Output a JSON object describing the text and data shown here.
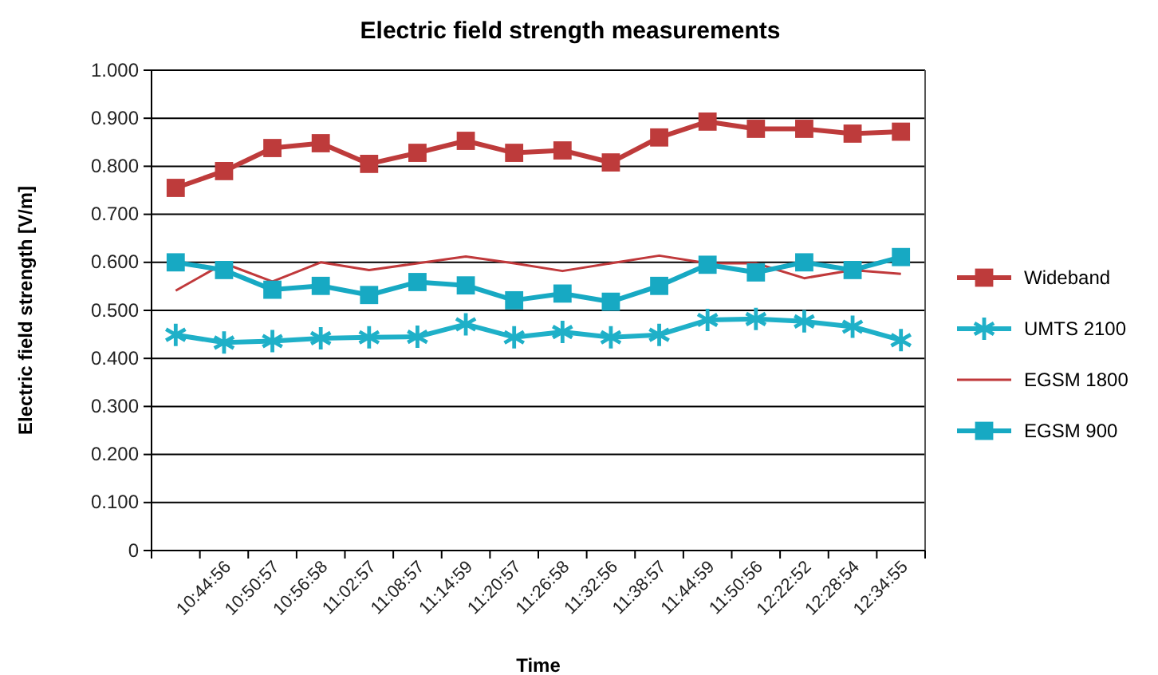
{
  "chart_data": {
    "type": "line",
    "title": "Electric field strength measurements",
    "xlabel": "Time",
    "ylabel": "Electric field strength [V/m]",
    "categories": [
      null,
      "10:44:56",
      "10:50:57",
      "10:56:58",
      "11:02:57",
      "11:08:57",
      "11:14:59",
      "11:20:57",
      "11:26:58",
      "11:32:56",
      "11:38:57",
      "11:44:59",
      "11:50:56",
      "12:22:52",
      "12:28:54",
      "12:34:55"
    ],
    "ylim": [
      0,
      1
    ],
    "yticks": [
      {
        "value": 0,
        "label": "0"
      },
      {
        "value": 0.1,
        "label": "0.100"
      },
      {
        "value": 0.2,
        "label": "0.200"
      },
      {
        "value": 0.3,
        "label": "0.300"
      },
      {
        "value": 0.4,
        "label": "0.400"
      },
      {
        "value": 0.5,
        "label": "0.500"
      },
      {
        "value": 0.6,
        "label": "0.600"
      },
      {
        "value": 0.7,
        "label": "0.700"
      },
      {
        "value": 0.8,
        "label": "0.800"
      },
      {
        "value": 0.9,
        "label": "0.900"
      },
      {
        "value": 1,
        "label": "1.000"
      }
    ],
    "grid": "y",
    "legend": "right",
    "series": [
      {
        "name": "Wideband",
        "color": "#be3b3b",
        "marker": "square",
        "values": [
          0.755,
          0.79,
          0.838,
          0.848,
          0.805,
          0.828,
          0.853,
          0.828,
          0.833,
          0.808,
          0.86,
          0.893,
          0.878,
          0.878,
          0.868,
          0.872
        ]
      },
      {
        "name": "UMTS 2100",
        "color": "#1fb0c8",
        "marker": "cross",
        "values": [
          0.449,
          0.433,
          0.436,
          0.442,
          0.444,
          0.445,
          0.471,
          0.444,
          0.455,
          0.444,
          0.449,
          0.48,
          0.482,
          0.477,
          0.466,
          0.438
        ]
      },
      {
        "name": "EGSM 1800",
        "color": "#c0393b",
        "marker": "none",
        "values": [
          0.541,
          0.598,
          0.56,
          0.6,
          0.584,
          0.598,
          0.612,
          0.598,
          0.582,
          0.598,
          0.614,
          0.598,
          0.598,
          0.567,
          0.584,
          0.576
        ]
      },
      {
        "name": "EGSM 900",
        "color": "#17a9c3",
        "marker": "square",
        "values": [
          0.6,
          0.584,
          0.543,
          0.551,
          0.532,
          0.559,
          0.552,
          0.521,
          0.535,
          0.518,
          0.551,
          0.595,
          0.579,
          0.6,
          0.584,
          0.611
        ]
      }
    ]
  }
}
